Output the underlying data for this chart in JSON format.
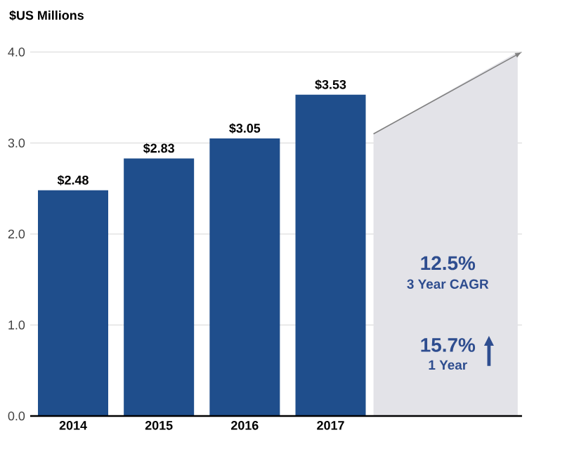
{
  "chart_data": {
    "type": "bar",
    "ylabel": "$US Millions",
    "categories": [
      "2014",
      "2015",
      "2016",
      "2017"
    ],
    "values": [
      2.48,
      2.83,
      3.05,
      3.53
    ],
    "color": "#1f4e8c",
    "value_labels": [
      "$2.48",
      "$2.83",
      "$3.05",
      "$3.53"
    ],
    "ylim": [
      0,
      4
    ],
    "yticks": [
      {
        "value": 0,
        "label": "0.0"
      },
      {
        "value": 1,
        "label": "1.0"
      },
      {
        "value": 2,
        "label": "2.0"
      },
      {
        "value": 3,
        "label": "3.0"
      },
      {
        "value": 4,
        "label": "4.0"
      }
    ],
    "grid": "y",
    "annotations": [
      "12.5%",
      "3 Year CAGR",
      "15.7%",
      "1 Year"
    ]
  }
}
